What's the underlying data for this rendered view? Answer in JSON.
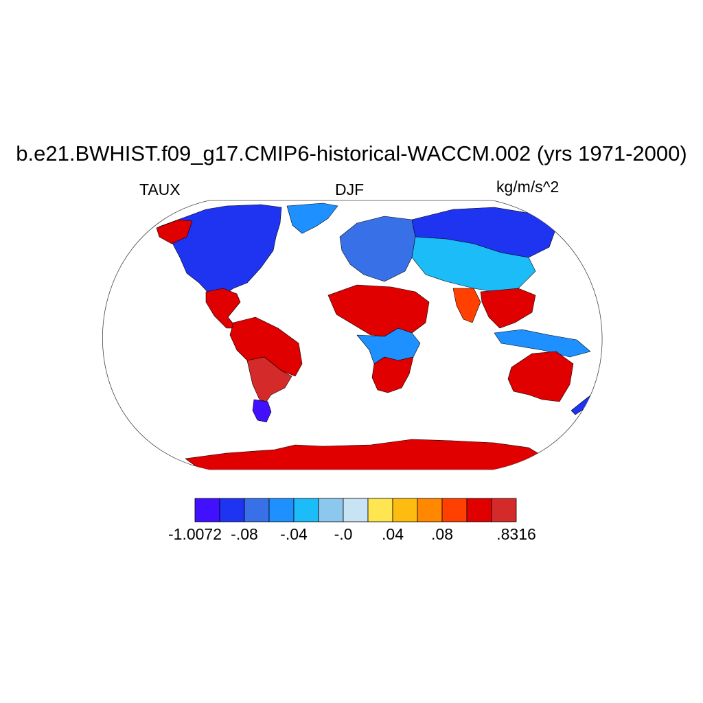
{
  "title": "b.e21.BWHIST.f09_g17.CMIP6-historical-WACCM.002 (yrs 1971-2000)",
  "subtitle_left": "TAUX",
  "subtitle_center": "DJF",
  "subtitle_right": "kg/m/s^2",
  "map": {
    "projection": "robinson",
    "field": "TAUX",
    "season": "DJF",
    "land_only": true,
    "ocean_color": "#ffffff",
    "coastline_color": "#000000",
    "regions": [
      {
        "name": "north-america",
        "category": 1
      },
      {
        "name": "gulf-coast-mexico",
        "category": 11
      },
      {
        "name": "alaska-west",
        "category": 11
      },
      {
        "name": "greenland",
        "category": 3
      },
      {
        "name": "south-america-north",
        "category": 11
      },
      {
        "name": "south-america-south",
        "category": 12
      },
      {
        "name": "patagonia",
        "category": 0
      },
      {
        "name": "sahara-sahel",
        "category": 11
      },
      {
        "name": "africa-central",
        "category": 3
      },
      {
        "name": "south-africa",
        "category": 11
      },
      {
        "name": "europe",
        "category": 2
      },
      {
        "name": "siberia",
        "category": 1
      },
      {
        "name": "central-asia",
        "category": 4
      },
      {
        "name": "india",
        "category": 10
      },
      {
        "name": "southeast-asia",
        "category": 11
      },
      {
        "name": "maritime-continent",
        "category": 3
      },
      {
        "name": "australia",
        "category": 11
      },
      {
        "name": "new-zealand",
        "category": 1
      },
      {
        "name": "antarctica",
        "category": 11
      }
    ]
  },
  "colorbar": {
    "colors": [
      "#4010ff",
      "#1e34f0",
      "#3870e8",
      "#1e90ff",
      "#1cbcf8",
      "#8cc8ee",
      "#c8e4f4",
      "#ffe650",
      "#ffbc10",
      "#ff8800",
      "#ff4000",
      "#e00000",
      "#d42a2a"
    ],
    "labels": [
      {
        "text": "-1.0072",
        "boundary": 0
      },
      {
        "text": "-.08",
        "boundary": 2
      },
      {
        "text": "-.04",
        "boundary": 4
      },
      {
        "text": "-.0",
        "boundary": 6
      },
      {
        "text": ".04",
        "boundary": 8
      },
      {
        "text": ".08",
        "boundary": 10
      },
      {
        "text": ".8316",
        "boundary": 13
      }
    ]
  }
}
